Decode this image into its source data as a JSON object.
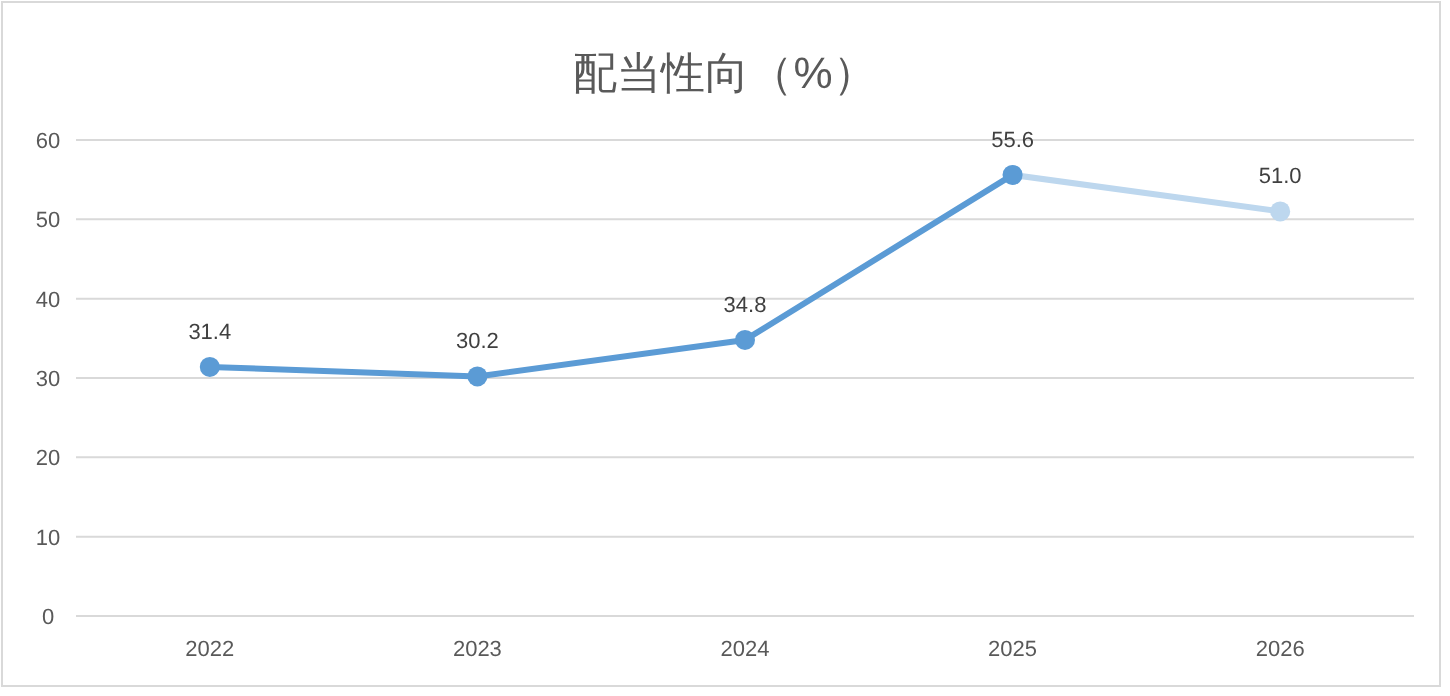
{
  "chart_data": {
    "type": "line",
    "title": "配当性向（%）",
    "categories": [
      "2022",
      "2023",
      "2024",
      "2025",
      "2026"
    ],
    "series": [
      {
        "color": "#bdd7ee",
        "values": [
          null,
          null,
          null,
          55.6,
          51.0
        ],
        "value_labels": [
          null,
          null,
          null,
          null,
          "51.0"
        ]
      },
      {
        "color": "#5b9bd5",
        "values": [
          31.4,
          30.2,
          34.8,
          55.6,
          null
        ],
        "value_labels": [
          "31.4",
          "30.2",
          "34.8",
          "55.6",
          null
        ]
      }
    ],
    "ylim": [
      0,
      60
    ],
    "yticks": [
      0,
      10,
      20,
      30,
      40,
      50,
      60
    ],
    "grid": "y",
    "marker": "circle",
    "line_style": "solid"
  }
}
